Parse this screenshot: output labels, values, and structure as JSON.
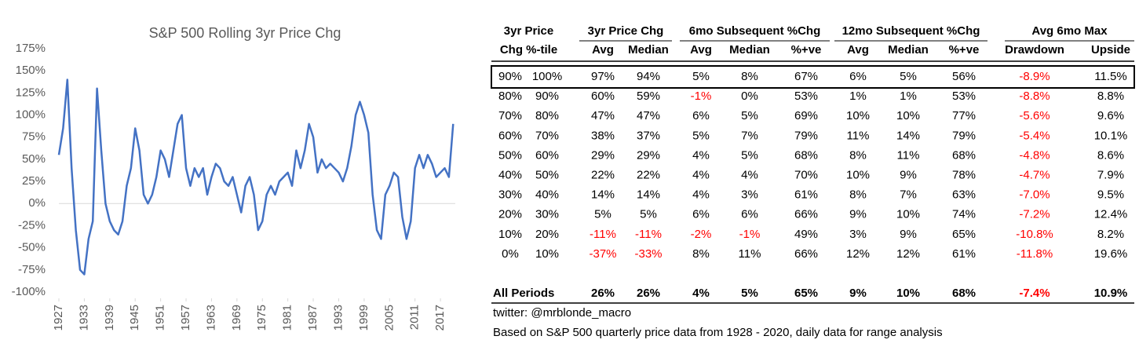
{
  "chart_data": {
    "type": "line",
    "title": "S&P 500 Rolling 3yr Price Chg",
    "x": [
      1927,
      1928,
      1929,
      1930,
      1931,
      1932,
      1933,
      1934,
      1935,
      1936,
      1937,
      1938,
      1939,
      1940,
      1941,
      1942,
      1943,
      1944,
      1945,
      1946,
      1947,
      1948,
      1949,
      1950,
      1951,
      1952,
      1953,
      1954,
      1955,
      1956,
      1957,
      1958,
      1959,
      1960,
      1961,
      1962,
      1963,
      1964,
      1965,
      1966,
      1967,
      1968,
      1969,
      1970,
      1971,
      1972,
      1973,
      1974,
      1975,
      1976,
      1977,
      1978,
      1979,
      1980,
      1981,
      1982,
      1983,
      1984,
      1985,
      1986,
      1987,
      1988,
      1989,
      1990,
      1991,
      1992,
      1993,
      1994,
      1995,
      1996,
      1997,
      1998,
      1999,
      2000,
      2001,
      2002,
      2003,
      2004,
      2005,
      2006,
      2007,
      2008,
      2009,
      2010,
      2011,
      2012,
      2013,
      2014,
      2015,
      2016,
      2017,
      2018,
      2019,
      2020
    ],
    "series": [
      {
        "name": "S&P 500 Rolling 3yr Price Chg",
        "color": "#4472c4",
        "values": [
          55,
          85,
          140,
          40,
          -30,
          -75,
          -80,
          -40,
          -20,
          130,
          60,
          0,
          -20,
          -30,
          -35,
          -20,
          20,
          40,
          85,
          60,
          10,
          0,
          10,
          30,
          60,
          50,
          30,
          60,
          90,
          100,
          40,
          20,
          40,
          30,
          40,
          10,
          30,
          45,
          40,
          25,
          20,
          30,
          10,
          -10,
          20,
          30,
          10,
          -30,
          -20,
          10,
          20,
          10,
          25,
          30,
          35,
          20,
          60,
          40,
          60,
          90,
          75,
          35,
          50,
          40,
          45,
          40,
          35,
          25,
          40,
          65,
          100,
          115,
          100,
          80,
          10,
          -30,
          -40,
          10,
          20,
          35,
          30,
          -15,
          -40,
          -20,
          40,
          55,
          40,
          55,
          45,
          30,
          35,
          40,
          30,
          90
        ]
      }
    ],
    "xlim": [
      1927,
      2020.5
    ],
    "xticks": [
      1927,
      1933,
      1939,
      1945,
      1951,
      1957,
      1963,
      1969,
      1975,
      1981,
      1987,
      1993,
      1999,
      2005,
      2011,
      2017
    ],
    "ylim": [
      -100,
      175
    ],
    "yticks": [
      {
        "value": -100,
        "label": "-100%"
      },
      {
        "value": -75,
        "label": "-75%"
      },
      {
        "value": -50,
        "label": "-50%"
      },
      {
        "value": -25,
        "label": "-25%"
      },
      {
        "value": 0,
        "label": "0%"
      },
      {
        "value": 25,
        "label": "25%"
      },
      {
        "value": 50,
        "label": "50%"
      },
      {
        "value": 75,
        "label": "75%"
      },
      {
        "value": 100,
        "label": "100%"
      },
      {
        "value": 125,
        "label": "125%"
      },
      {
        "value": 150,
        "label": "150%"
      },
      {
        "value": 175,
        "label": "175%"
      }
    ],
    "grid": false
  },
  "table": {
    "first_header": [
      "3yr Price",
      "Chg %-tile"
    ],
    "groups": [
      {
        "label": "3yr Price Chg",
        "span": 2
      },
      {
        "label": "6mo Subsequent %Chg",
        "span": 3
      },
      {
        "label": "12mo Subsequent %Chg",
        "span": 3
      },
      {
        "label": "Avg 6mo Max",
        "span": 2
      }
    ],
    "sub_headers": [
      "Avg",
      "Median",
      "Avg",
      "Median",
      "%+ve",
      "Avg",
      "Median",
      "%+ve",
      "Drawdown",
      "Upside"
    ],
    "rows": [
      [
        "90%",
        "100%",
        "97%",
        "94%",
        "5%",
        "8%",
        "67%",
        "6%",
        "5%",
        "56%",
        "-8.9%",
        "11.5%"
      ],
      [
        "80%",
        "90%",
        "60%",
        "59%",
        "-1%",
        "0%",
        "53%",
        "1%",
        "1%",
        "53%",
        "-8.8%",
        "8.8%"
      ],
      [
        "70%",
        "80%",
        "47%",
        "47%",
        "6%",
        "5%",
        "69%",
        "10%",
        "10%",
        "77%",
        "-5.6%",
        "9.6%"
      ],
      [
        "60%",
        "70%",
        "38%",
        "37%",
        "5%",
        "7%",
        "79%",
        "11%",
        "14%",
        "79%",
        "-5.4%",
        "10.1%"
      ],
      [
        "50%",
        "60%",
        "29%",
        "29%",
        "4%",
        "5%",
        "68%",
        "8%",
        "11%",
        "68%",
        "-4.8%",
        "8.6%"
      ],
      [
        "40%",
        "50%",
        "22%",
        "22%",
        "4%",
        "4%",
        "70%",
        "10%",
        "9%",
        "78%",
        "-4.7%",
        "7.9%"
      ],
      [
        "30%",
        "40%",
        "14%",
        "14%",
        "4%",
        "3%",
        "61%",
        "8%",
        "7%",
        "63%",
        "-7.0%",
        "9.5%"
      ],
      [
        "20%",
        "30%",
        "5%",
        "5%",
        "6%",
        "6%",
        "66%",
        "9%",
        "10%",
        "74%",
        "-7.2%",
        "12.4%"
      ],
      [
        "10%",
        "20%",
        "-11%",
        "-11%",
        "-2%",
        "-1%",
        "49%",
        "3%",
        "9%",
        "65%",
        "-10.8%",
        "8.2%"
      ],
      [
        "0%",
        "10%",
        "-37%",
        "-33%",
        "8%",
        "11%",
        "66%",
        "12%",
        "12%",
        "61%",
        "-11.8%",
        "19.6%"
      ]
    ],
    "total_label": "All Periods",
    "total": [
      "26%",
      "26%",
      "4%",
      "5%",
      "65%",
      "9%",
      "10%",
      "68%",
      "-7.4%",
      "10.9%"
    ],
    "negative_color": "#ff0000",
    "notes": [
      "twitter: @mrblonde_macro",
      "Based on S&P 500 quarterly price data from 1928 - 2020, daily data for range analysis"
    ]
  }
}
